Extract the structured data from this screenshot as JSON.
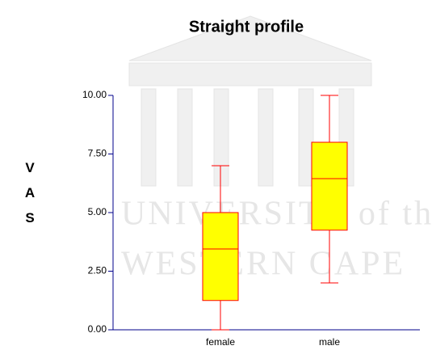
{
  "chart_data": {
    "type": "box",
    "title": "Straight profile",
    "y_label": "VAS",
    "watermark": [
      "UNIVERSITY of the",
      "WESTERN CAPE"
    ],
    "categories": [
      "female",
      "male"
    ],
    "boxes": [
      {
        "low": 0,
        "q1": 1.25,
        "median": 3.45,
        "q3": 5.0,
        "high": 7.0
      },
      {
        "low": 2.0,
        "q1": 4.25,
        "median": 6.45,
        "q3": 8.0,
        "high": 10.0
      }
    ],
    "box_color": "#ffff00",
    "line_color": "#ff0000",
    "axis_color": "#00008b",
    "ylim": [
      0,
      10
    ],
    "yticks": [
      {
        "value": 0,
        "label": "0.00"
      },
      {
        "value": 2.5,
        "label": "2.50"
      },
      {
        "value": 5,
        "label": "5.00"
      },
      {
        "value": 7.5,
        "label": "7.50"
      },
      {
        "value": 10,
        "label": "10.00"
      }
    ]
  }
}
